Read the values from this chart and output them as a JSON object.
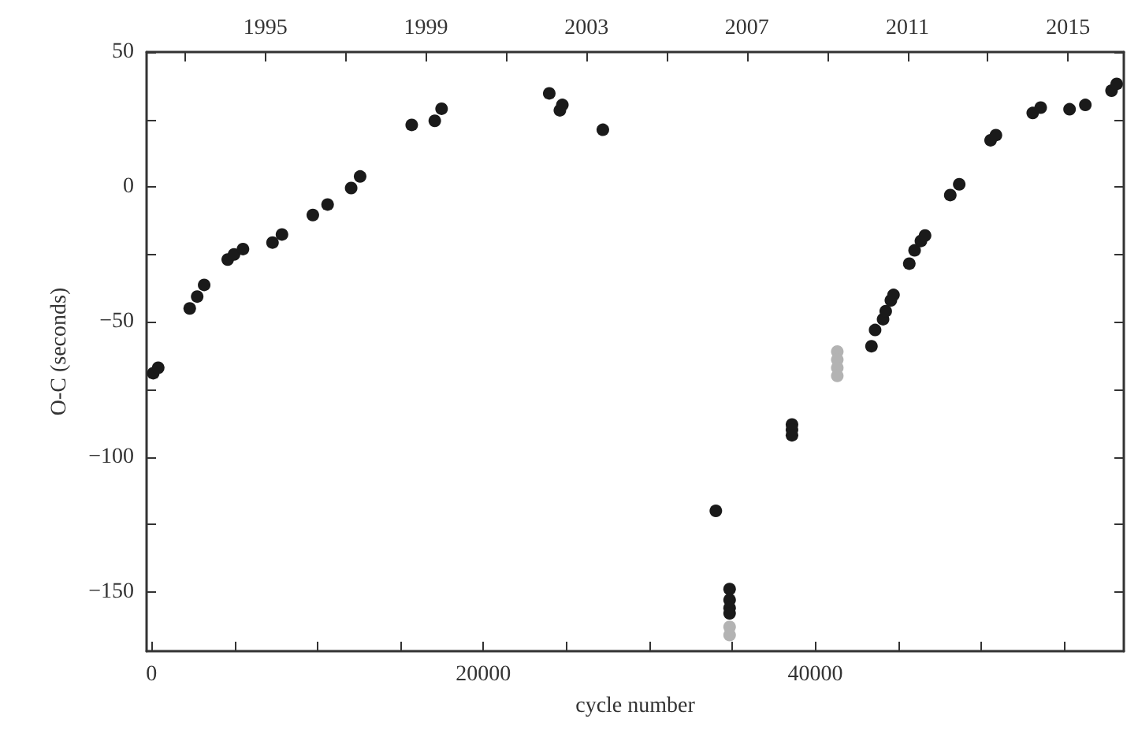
{
  "chart_data": {
    "type": "scatter",
    "xlabel": "cycle number",
    "ylabel": "O-C (seconds)",
    "xlim": [
      -300,
      58600
    ],
    "ylim": [
      -172,
      50
    ],
    "xticks": [
      0,
      {
        "value": 5000,
        "label": null
      },
      {
        "value": 10000,
        "label": null
      },
      {
        "value": 15000,
        "label": null
      },
      20000,
      {
        "value": 25000,
        "label": null
      },
      {
        "value": 30000,
        "label": null
      },
      {
        "value": 35000,
        "label": null
      },
      40000,
      {
        "value": 45000,
        "label": null
      },
      {
        "value": 50000,
        "label": null
      },
      {
        "value": 55000,
        "label": null
      }
    ],
    "yticks": [
      50,
      {
        "value": 25,
        "label": null
      },
      0,
      {
        "value": -25,
        "label": null
      },
      {
        "value": -50,
        "label": "−50"
      },
      {
        "value": -75,
        "label": null
      },
      {
        "value": -100,
        "label": "−100"
      },
      {
        "value": -125,
        "label": null
      },
      {
        "value": -150,
        "label": "−150"
      }
    ],
    "x2lim": [
      1992.04,
      2016.39
    ],
    "x2ticks": [
      {
        "value": 1993,
        "label": null
      },
      1995,
      {
        "value": 1997,
        "label": null
      },
      1999,
      {
        "value": 2001,
        "label": null
      },
      2003,
      {
        "value": 2005,
        "label": null
      },
      2007,
      {
        "value": 2009,
        "label": null
      },
      2011,
      {
        "value": 2013,
        "label": null
      },
      2015
    ],
    "grid": false,
    "marker": "circle",
    "series": [
      {
        "color": "#1a1a1a",
        "x": [
          100,
          400,
          2300,
          2750,
          3170,
          4590,
          4970,
          5510,
          7290,
          7860,
          9720,
          10610,
          12030,
          12570,
          15680,
          17070,
          17480,
          23970,
          24610,
          24760,
          27200,
          34010,
          34840,
          34840,
          34840,
          34840,
          38600,
          38600,
          38600,
          43390,
          43610,
          44090,
          44250,
          44560,
          44720,
          45670,
          45990,
          46370,
          46620,
          48140,
          48680,
          50570,
          50890,
          53110,
          53590,
          55330,
          56280,
          57860,
          58170
        ],
        "values": [
          -69,
          -67,
          -45,
          -40.6,
          -36.3,
          -26.9,
          -25,
          -23,
          -20.6,
          -17.6,
          -10.4,
          -6.5,
          -0.4,
          3.9,
          23,
          24.5,
          29,
          34.7,
          28.4,
          30.4,
          21.2,
          -120,
          -149,
          -153,
          -156,
          -158,
          -88,
          -90,
          -92,
          -59,
          -53,
          -49,
          -46,
          -42,
          -40,
          -28.4,
          -23.5,
          -20,
          -18,
          -3,
          1,
          17.3,
          19.2,
          27.4,
          29.4,
          28.8,
          30.4,
          35.7,
          38.2
        ]
      },
      {
        "color": "#b3b3b3",
        "x": [
          41330,
          41330,
          41330,
          41330,
          34840,
          34840
        ],
        "values": [
          -61,
          -64,
          -67,
          -70,
          -163,
          -166
        ]
      }
    ]
  }
}
